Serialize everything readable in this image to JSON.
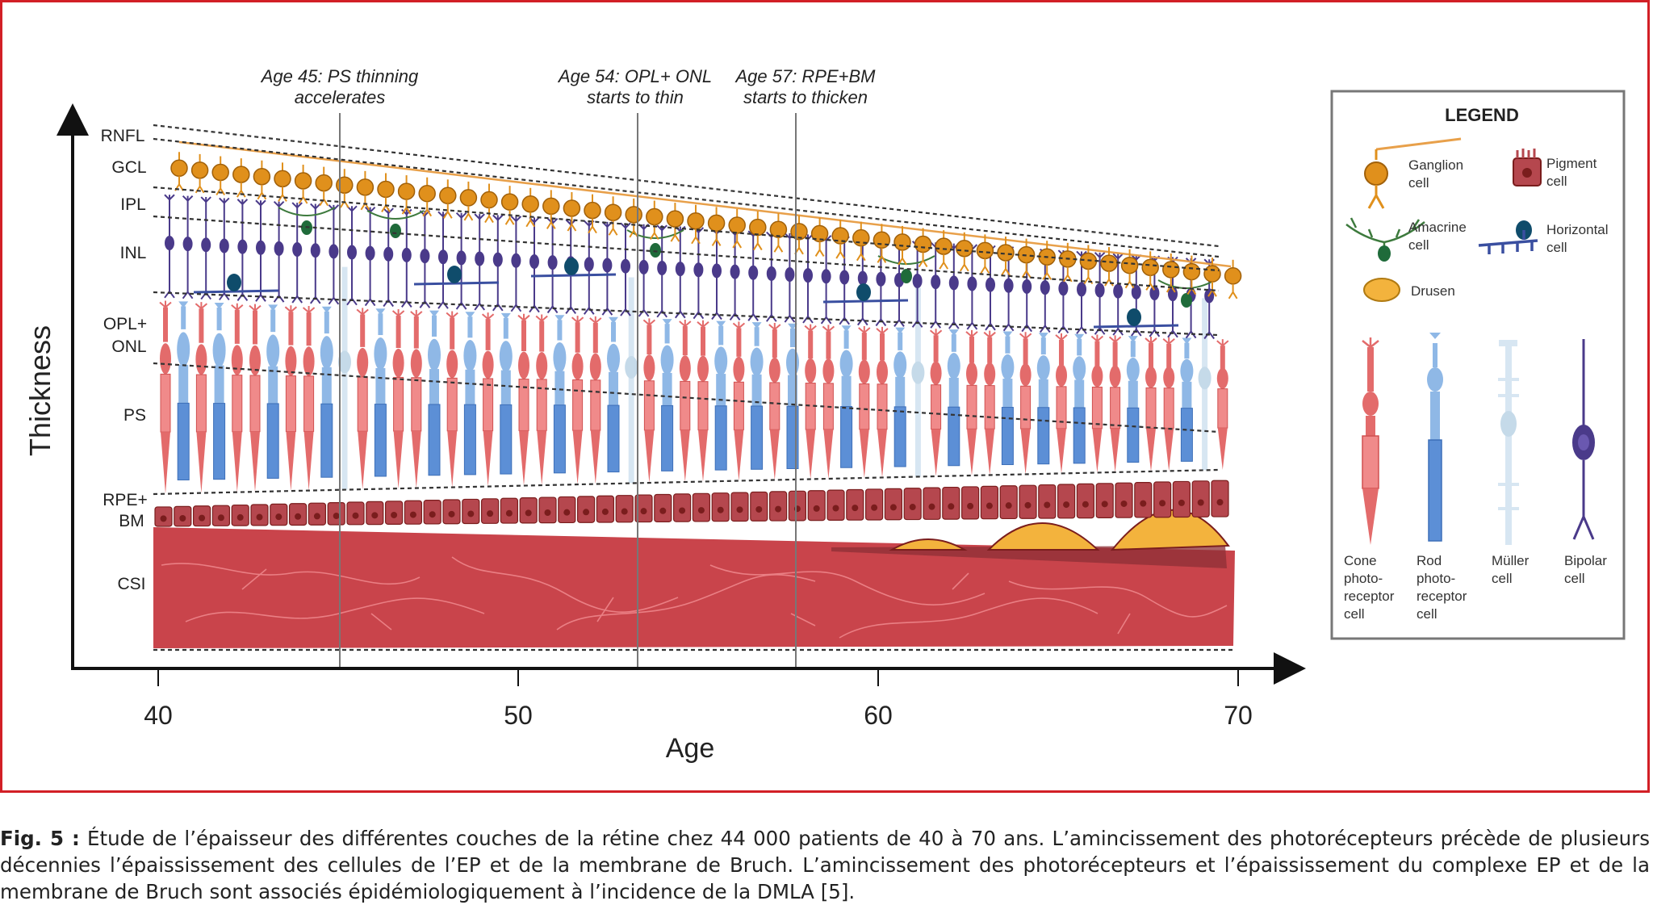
{
  "diagram": {
    "axes": {
      "y_label": "Thickness",
      "x_label": "Age",
      "x_ticks": [
        "40",
        "50",
        "60",
        "70"
      ]
    },
    "layers": [
      "RNFL",
      "GCL",
      "IPL",
      "INL",
      "OPL+",
      "ONL",
      "PS",
      "RPE+",
      "BM",
      "CSI"
    ],
    "annotations": [
      {
        "line1": "Age 45: PS thinning",
        "line2": "accelerates"
      },
      {
        "line1": "Age 54: OPL+ ONL",
        "line2": "starts to thin"
      },
      {
        "line1": "Age 57:  RPE+BM",
        "line2": "starts to thicken"
      }
    ],
    "legend": {
      "title": "LEGEND",
      "items": [
        {
          "line1": "Ganglion",
          "line2": "cell"
        },
        {
          "line1": "Pigment",
          "line2": "cell"
        },
        {
          "line1": "Amacrine",
          "line2": "cell"
        },
        {
          "line1": "Horizontal",
          "line2": "cell"
        },
        {
          "line1": "Drusen",
          "line2": ""
        }
      ],
      "cells": [
        {
          "l1": "Cone",
          "l2": "photo-",
          "l3": "receptor",
          "l4": "cell"
        },
        {
          "l1": "Rod",
          "l2": "photo-",
          "l3": "receptor",
          "l4": "cell"
        },
        {
          "l1": "Müller",
          "l2": "cell",
          "l3": "",
          "l4": ""
        },
        {
          "l1": "Bipolar",
          "l2": "cell",
          "l3": "",
          "l4": ""
        }
      ]
    },
    "colors": {
      "frame": "#d21f26",
      "ganglion": "#e0901c",
      "cone": "#e36b6b",
      "rod": "#8fb8e6",
      "muller": "#d7e6f2",
      "bipolar": "#4a3a8a",
      "choroid": "#c9444b",
      "drusen": "#f3b33d"
    }
  },
  "caption": {
    "label": "Fig. 5 :",
    "text": " Étude de l’épaisseur des différentes couches de la rétine chez 44 000 patients de 40 à 70 ans. L’amincissement des photorécepteurs précède de plusieurs décennies l’épaississement des cellules de l’EP et de la membrane de Bruch. L’amincissement des photorécepteurs et l’épaississement du complexe EP et de la membrane de Bruch sont associés épidémiologiquement à l’incidence de la DMLA [5]."
  }
}
